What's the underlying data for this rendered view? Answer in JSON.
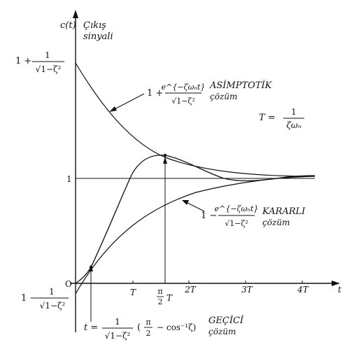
{
  "labels": {
    "y_axis": "c(t)",
    "y_axis_title_line1": "Çıkış",
    "y_axis_title_line2": "sinyali",
    "x_axis": "t",
    "origin": "O",
    "one": "1",
    "upper_left_prefix": "1 +",
    "lower_left_prefix": "1 −",
    "fraction_num": "1",
    "fraction_den": "√1−ζ²"
  },
  "ticks": [
    "T",
    "2T",
    "3T",
    "4T"
  ],
  "peak_tick": {
    "num": "π",
    "den": "2",
    "suffix": "T"
  },
  "asymptotic": {
    "prefix": "1 +",
    "num": "e^{−ζωₙt}",
    "den": "√1−ζ²",
    "title": "ASİMPTOTİK",
    "subtitle": "çözüm"
  },
  "steady": {
    "prefix": "1 −",
    "num": "e^{−ζωₙt}",
    "den": "√1−ζ²",
    "title": "KARARLI",
    "subtitle": "çözüm"
  },
  "period": {
    "prefix": "T =",
    "num": "1",
    "den": "ζωₙ"
  },
  "transient": {
    "prefix": "t =",
    "num": "1",
    "den": "√1−ζ²",
    "paren_open": "(",
    "pi_num": "π",
    "pi_den": "2",
    "rest": "− cos⁻¹ζ)",
    "title": "GEÇİCİ",
    "subtitle": "çözüm"
  }
}
